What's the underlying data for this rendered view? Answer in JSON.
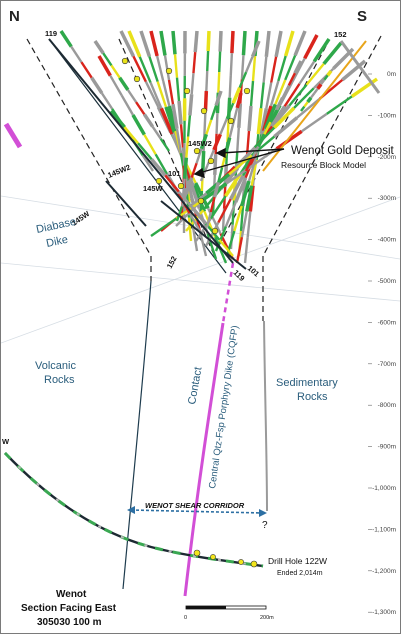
{
  "orientation": {
    "left": "N",
    "right": "S"
  },
  "drill_holes": {
    "h119_top": "119",
    "h152_top": "152",
    "h145w2_a": "145W2",
    "h145w2_b": "145W2",
    "h145w": "145W",
    "h145w_b": "145W",
    "h101_a": "101",
    "h101_b": "101",
    "h152_b": "152",
    "h119_b": "119",
    "w_stub": "W"
  },
  "callout": {
    "title": "Wenot Gold Deposit",
    "subtitle": "Resource Block Model"
  },
  "geology": {
    "diabase_1": "Diabase",
    "diabase_2": "Dike",
    "volcanic_1": "Volcanic",
    "volcanic_2": "Rocks",
    "sedimentary_1": "Sedimentary",
    "sedimentary_2": "Rocks",
    "contact": "Contact",
    "porphyry": "Central Qtz-Fsp Porphyry Dike (CQFP)",
    "shear": "WENOT SHEAR CORRIDOR",
    "question": "?"
  },
  "depth_labels": [
    "0m",
    "-100m",
    "-200m",
    "-300m",
    "-400m",
    "-500m",
    "-600m",
    "-700m",
    "-800m",
    "-900m",
    "-1,000m",
    "-1,100m",
    "-1,200m",
    "-1,300m"
  ],
  "drill_hole_122w": {
    "label": "Drill Hole 122W",
    "ended": "Ended 2,014m"
  },
  "section": {
    "line1": "Wenot",
    "line2": "Section Facing East",
    "line3": "305030 100 m"
  },
  "scale_bar": {
    "start": "0",
    "end": "200m"
  },
  "colors": {
    "geology_text": "#2a5d7c",
    "porphyry": "#d24fd6",
    "gold_high": "#e8e11a",
    "gold_red": "#d9241c",
    "green": "#2ea84a",
    "trace_gray": "#9a9a9a",
    "shear_arrow": "#2c6fa3"
  }
}
